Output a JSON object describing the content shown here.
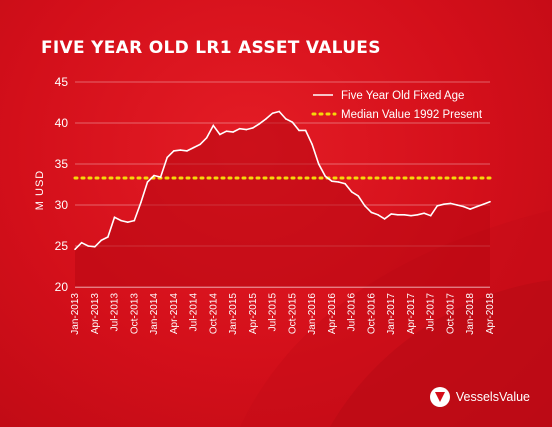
{
  "title": "FIVE YEAR OLD LR1 ASSET VALUES",
  "brand": {
    "name": "VesselsValue",
    "icon": "vesselsvalue-logo-icon"
  },
  "colors": {
    "background": "#d50d19",
    "line": "#ffffff",
    "median": "#f5d90a"
  },
  "chart_data": {
    "type": "area",
    "title": "FIVE YEAR OLD LR1 ASSET VALUES",
    "ylabel": "M USD",
    "xlabel": "",
    "ylim": [
      20,
      45
    ],
    "yticks": [
      20,
      25,
      30,
      35,
      40,
      45
    ],
    "grid": true,
    "legend_position": "top-right",
    "x_tick_labels": [
      "Jan-2013",
      "Apr-2013",
      "Jul-2013",
      "Oct-2013",
      "Jan-2014",
      "Apr-2014",
      "Jul-2014",
      "Oct-2014",
      "Jan-2015",
      "Apr-2015",
      "Jul-2015",
      "Oct-2015",
      "Jan-2016",
      "Apr-2016",
      "Jul-2016",
      "Oct-2016",
      "Jan-2017",
      "Apr-2017",
      "Jul-2017",
      "Oct-2017",
      "Jan-2018",
      "Apr-2018"
    ],
    "series": [
      {
        "name": "Five Year Old Fixed Age",
        "style": "solid",
        "x": [
          "Jan-2013",
          "Feb-2013",
          "Mar-2013",
          "Apr-2013",
          "May-2013",
          "Jun-2013",
          "Jul-2013",
          "Aug-2013",
          "Sep-2013",
          "Oct-2013",
          "Nov-2013",
          "Dec-2013",
          "Jan-2014",
          "Feb-2014",
          "Mar-2014",
          "Apr-2014",
          "May-2014",
          "Jun-2014",
          "Jul-2014",
          "Aug-2014",
          "Sep-2014",
          "Oct-2014",
          "Nov-2014",
          "Dec-2014",
          "Jan-2015",
          "Feb-2015",
          "Mar-2015",
          "Apr-2015",
          "May-2015",
          "Jun-2015",
          "Jul-2015",
          "Aug-2015",
          "Sep-2015",
          "Oct-2015",
          "Nov-2015",
          "Dec-2015",
          "Jan-2016",
          "Feb-2016",
          "Mar-2016",
          "Apr-2016",
          "May-2016",
          "Jun-2016",
          "Jul-2016",
          "Aug-2016",
          "Sep-2016",
          "Oct-2016",
          "Nov-2016",
          "Dec-2016",
          "Jan-2017",
          "Feb-2017",
          "Mar-2017",
          "Apr-2017",
          "May-2017",
          "Jun-2017",
          "Jul-2017",
          "Aug-2017",
          "Sep-2017",
          "Oct-2017",
          "Nov-2017",
          "Dec-2017",
          "Jan-2018",
          "Feb-2018",
          "Mar-2018",
          "Apr-2018"
        ],
        "values": [
          24.6,
          25.4,
          25.0,
          24.9,
          25.7,
          26.1,
          28.5,
          28.1,
          27.9,
          28.1,
          30.3,
          32.8,
          33.6,
          33.4,
          35.8,
          36.6,
          36.7,
          36.6,
          37.0,
          37.4,
          38.2,
          39.7,
          38.6,
          39.0,
          38.9,
          39.3,
          39.2,
          39.4,
          39.9,
          40.5,
          41.2,
          41.4,
          40.5,
          40.1,
          39.1,
          39.1,
          37.4,
          35.0,
          33.5,
          32.9,
          32.8,
          32.6,
          31.6,
          31.1,
          29.9,
          29.1,
          28.8,
          28.3,
          28.9,
          28.8,
          28.8,
          28.7,
          28.8,
          29.0,
          28.7,
          29.9,
          30.1,
          30.2,
          30.0,
          29.8,
          29.5,
          29.8,
          30.1,
          30.4
        ]
      },
      {
        "name": "Median Value 1992 Present",
        "style": "dotted",
        "constant": 33.3
      }
    ]
  }
}
